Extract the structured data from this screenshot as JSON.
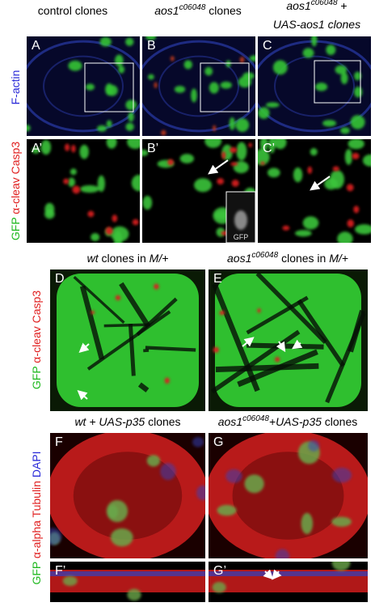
{
  "headers": [
    [
      {
        "text": "control clones"
      }
    ],
    [
      {
        "text": "aos1",
        "italic": true
      },
      {
        "text": "c06048",
        "italic": true,
        "sup": true
      },
      {
        "text": " clones"
      }
    ],
    [
      {
        "text": "aos1",
        "italic": true
      },
      {
        "text": "c06048",
        "italic": true,
        "sup": true
      },
      {
        "text": " +"
      }
    ],
    [
      {
        "text": "UAS-aos1 clones",
        "italic": true
      }
    ],
    [
      {
        "text": "wt",
        "italic": true
      },
      {
        "text": " clones in "
      },
      {
        "text": "M/+",
        "italic": true
      }
    ],
    [
      {
        "text": "aos1",
        "italic": true
      },
      {
        "text": "c06048",
        "italic": true,
        "sup": true
      },
      {
        "text": " clones in "
      },
      {
        "text": "M/+",
        "italic": true
      }
    ],
    [
      {
        "text": "wt + UAS-p35",
        "italic": true
      },
      {
        "text": " clones"
      }
    ],
    [
      {
        "text": "aos1",
        "italic": true
      },
      {
        "text": "c06048",
        "italic": true,
        "sup": true
      },
      {
        "text": "+UAS-p35",
        "italic": true
      },
      {
        "text": " clones"
      }
    ]
  ],
  "side_labels": [
    [
      {
        "text": "F-actin",
        "color": "#2a2ad8"
      }
    ],
    [
      {
        "text": "GFP",
        "color": "#1fb81f"
      },
      {
        "text": " α-cleav Casp3",
        "color": "#e01e1e"
      }
    ],
    [
      {
        "text": "GFP",
        "color": "#1fb81f"
      },
      {
        "text": " α-cleav Casp3",
        "color": "#e01e1e"
      }
    ],
    [
      {
        "text": "GFP",
        "color": "#1fb81f"
      },
      {
        "text": " α-alpha Tubulin",
        "color": "#e01e1e"
      },
      {
        "text": " DAPI",
        "color": "#2a2ad8"
      }
    ]
  ],
  "panel_letters": [
    "A",
    "B",
    "C",
    "A’",
    "B’",
    "C’",
    "D",
    "E",
    "F",
    "G",
    "F’",
    "G’"
  ],
  "inset_label": "GFP"
}
